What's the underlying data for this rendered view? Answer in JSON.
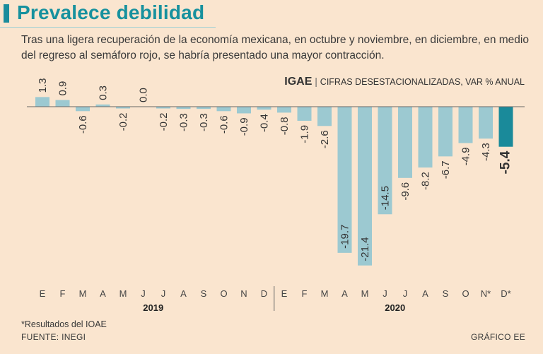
{
  "header": {
    "title": "Prevalece debilidad",
    "subtitle": "Tras una ligera recuperación de la economía mexicana, en octubre y noviembre, en diciembre, en medio del regreso al semáforo rojo, se habría presentado una mayor contracción."
  },
  "chart_data": {
    "type": "bar",
    "title_bold": "IGAE",
    "title_rest": "CIFRAS DESESTACIONALIZADAS, VAR % ANUAL",
    "categories": [
      "E",
      "F",
      "M",
      "A",
      "M",
      "J",
      "J",
      "A",
      "S",
      "O",
      "N",
      "D",
      "E",
      "F",
      "M",
      "A",
      "M",
      "J",
      "J",
      "A",
      "S",
      "O",
      "N*",
      "D*"
    ],
    "value_labels": [
      "1.3",
      "0.9",
      "-0.6",
      "0.3",
      "-0.2",
      "0.0",
      "-0.2",
      "-0.3",
      "-0.3",
      "-0.6",
      "-0.9",
      "-0.4",
      "-0.8",
      "-1.9",
      "-2.6",
      "-19.7",
      "-21.4",
      "-14.5",
      "-9.6",
      "-8.2",
      "-6.7",
      "-4.9",
      "-4.3",
      "-5.4"
    ],
    "values": [
      1.3,
      0.9,
      -0.6,
      0.3,
      -0.2,
      0.0,
      -0.2,
      -0.3,
      -0.3,
      -0.6,
      -0.9,
      -0.4,
      -0.8,
      -1.9,
      -2.6,
      -19.7,
      -21.4,
      -14.5,
      -9.6,
      -8.2,
      -6.7,
      -4.9,
      -4.3,
      -5.4
    ],
    "years": [
      "2019",
      "2020"
    ],
    "highlight_index": 23,
    "colors": {
      "bar": "#9cc9d1",
      "highlight": "#1a8a9a",
      "axis": "#666666"
    }
  },
  "footer": {
    "note": "*Resultados del IOAE",
    "source": "FUENTE: INEGI",
    "credit": "GRÁFICO EE"
  }
}
